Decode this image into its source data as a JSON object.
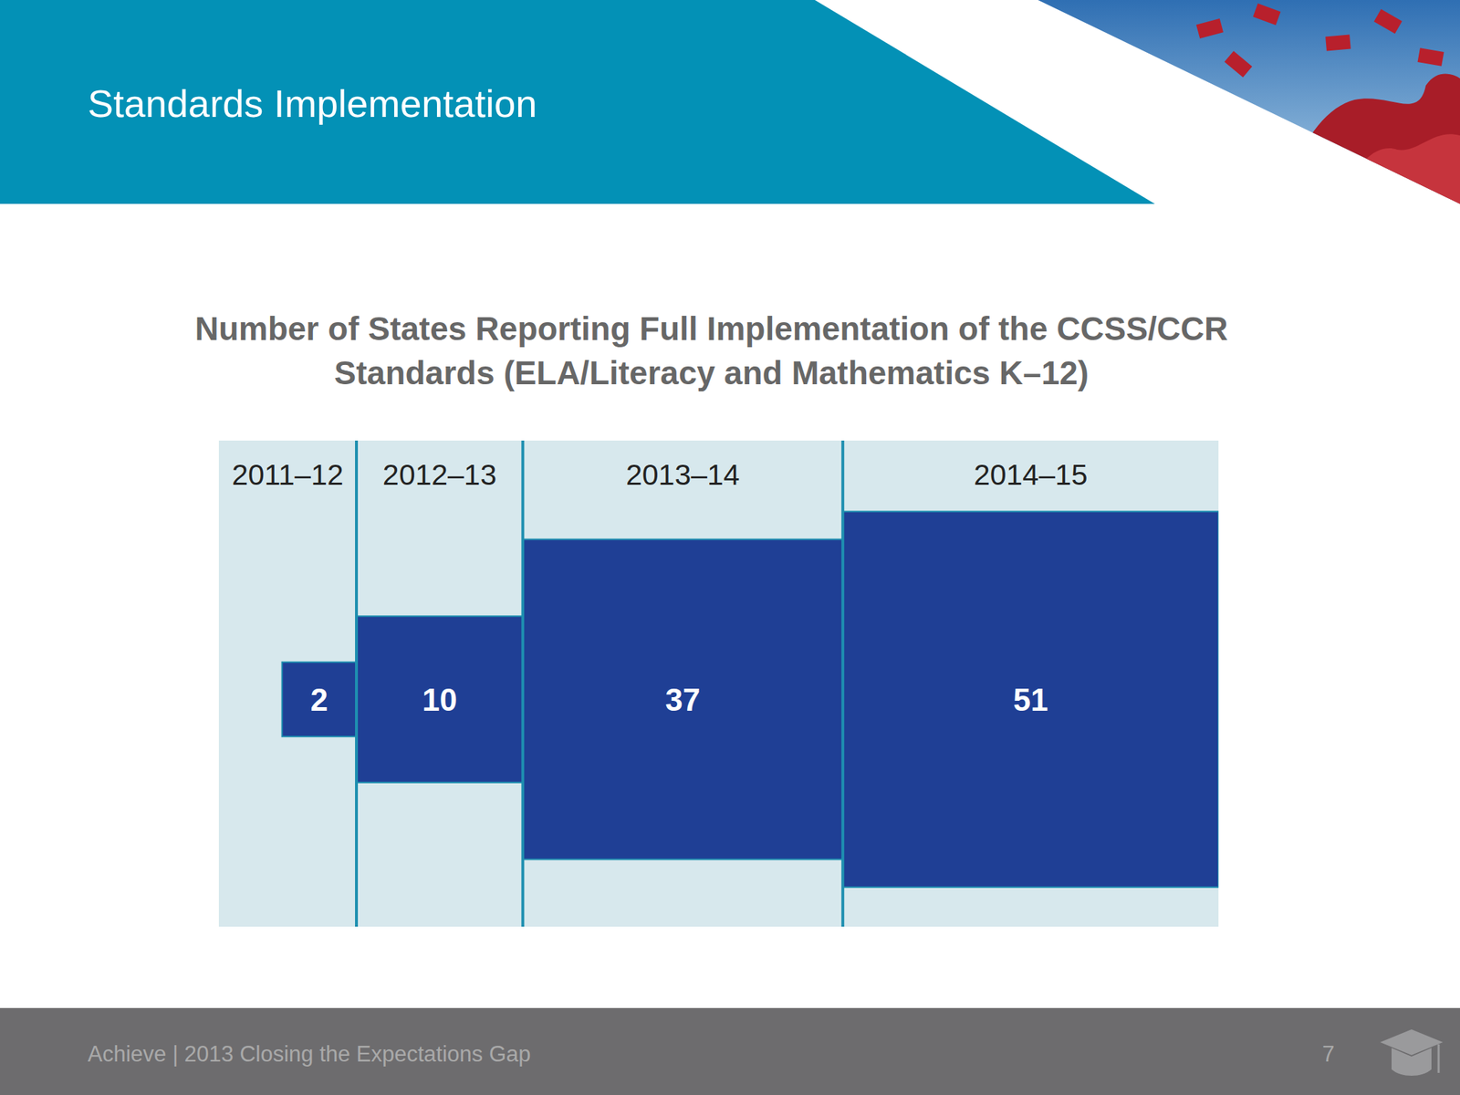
{
  "slide": {
    "title": "Standards Implementation",
    "footer": "Achieve | 2013 Closing the Expectations Gap",
    "page": 7
  },
  "chart_data": {
    "type": "squares",
    "title": "Number of States Reporting Full Implementation of the CCSS/CCR Standards (ELA/Literacy and Mathematics K–12)",
    "categories": [
      "2011–12",
      "2012–13",
      "2013–14",
      "2014–15"
    ],
    "values": [
      2,
      10,
      37,
      51
    ],
    "color": "#1f3f95",
    "data_labels": true
  }
}
